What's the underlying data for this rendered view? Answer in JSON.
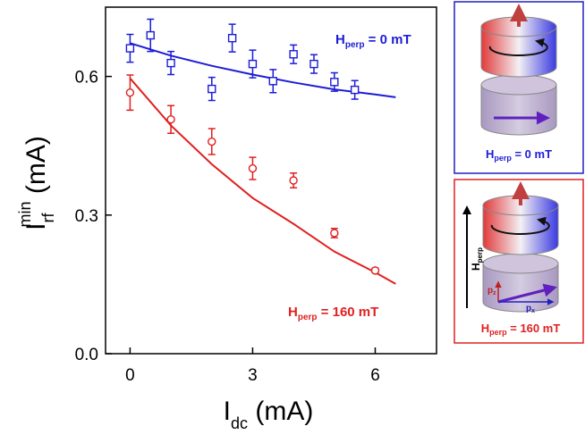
{
  "chart_data": {
    "type": "scatter",
    "xlim": [
      -0.6,
      7.5
    ],
    "ylim": [
      0,
      0.75
    ],
    "xticks": [
      0,
      3,
      6
    ],
    "yticks": [
      {
        "value": 0,
        "label": "0.0"
      },
      0.3,
      0.6
    ],
    "xlabel": {
      "main": "I",
      "sub": "dc",
      "rest": " (mA)"
    },
    "ylabel": {
      "main": "I",
      "sub": "rf",
      "sup": "min",
      "rest": " (mA)"
    },
    "series": [
      {
        "label": {
          "main": "H",
          "sub": "perp",
          "rest": " = 0 mT"
        },
        "color": "#1c1cd6",
        "marker": "square",
        "x": [
          0,
          0.5,
          1,
          2,
          2.5,
          3,
          3.5,
          4,
          4.5,
          5,
          5.5
        ],
        "values": [
          0.661,
          0.689,
          0.629,
          0.573,
          0.683,
          0.627,
          0.59,
          0.648,
          0.627,
          0.588,
          0.571
        ],
        "errors": [
          0.03,
          0.035,
          0.025,
          0.025,
          0.03,
          0.03,
          0.025,
          0.02,
          0.02,
          0.02,
          0.02
        ],
        "fit": {
          "x": [
            0,
            1,
            2,
            3,
            4,
            5,
            6,
            6.5
          ],
          "values": [
            0.672,
            0.645,
            0.623,
            0.604,
            0.587,
            0.572,
            0.561,
            0.555
          ]
        }
      },
      {
        "label": {
          "main": "H",
          "sub": "perp",
          "rest": " = 160 mT"
        },
        "color": "#e02020",
        "marker": "circle",
        "x": [
          0,
          1,
          2,
          3,
          4,
          5,
          6
        ],
        "values": [
          0.565,
          0.507,
          0.459,
          0.401,
          0.375,
          0.261,
          0.18
        ],
        "errors": [
          0.038,
          0.03,
          0.028,
          0.024,
          0.016,
          0.01,
          0.005
        ],
        "fit": {
          "x": [
            0,
            1,
            2,
            3,
            4,
            5,
            6,
            6.5
          ],
          "values": [
            0.596,
            0.494,
            0.41,
            0.337,
            0.281,
            0.221,
            0.176,
            0.151
          ]
        }
      }
    ]
  },
  "panels": [
    {
      "label": {
        "main": "H",
        "sub": "perp",
        "rest": " = 0 mT"
      }
    },
    {
      "axis_label": {
        "main": "H",
        "sub": "perp"
      },
      "pz": {
        "main": "p",
        "sub": "z"
      },
      "px": {
        "main": "p",
        "sub": "x"
      },
      "label": {
        "main": "H",
        "sub": "perp",
        "rest": " = 160 mT"
      }
    }
  ]
}
